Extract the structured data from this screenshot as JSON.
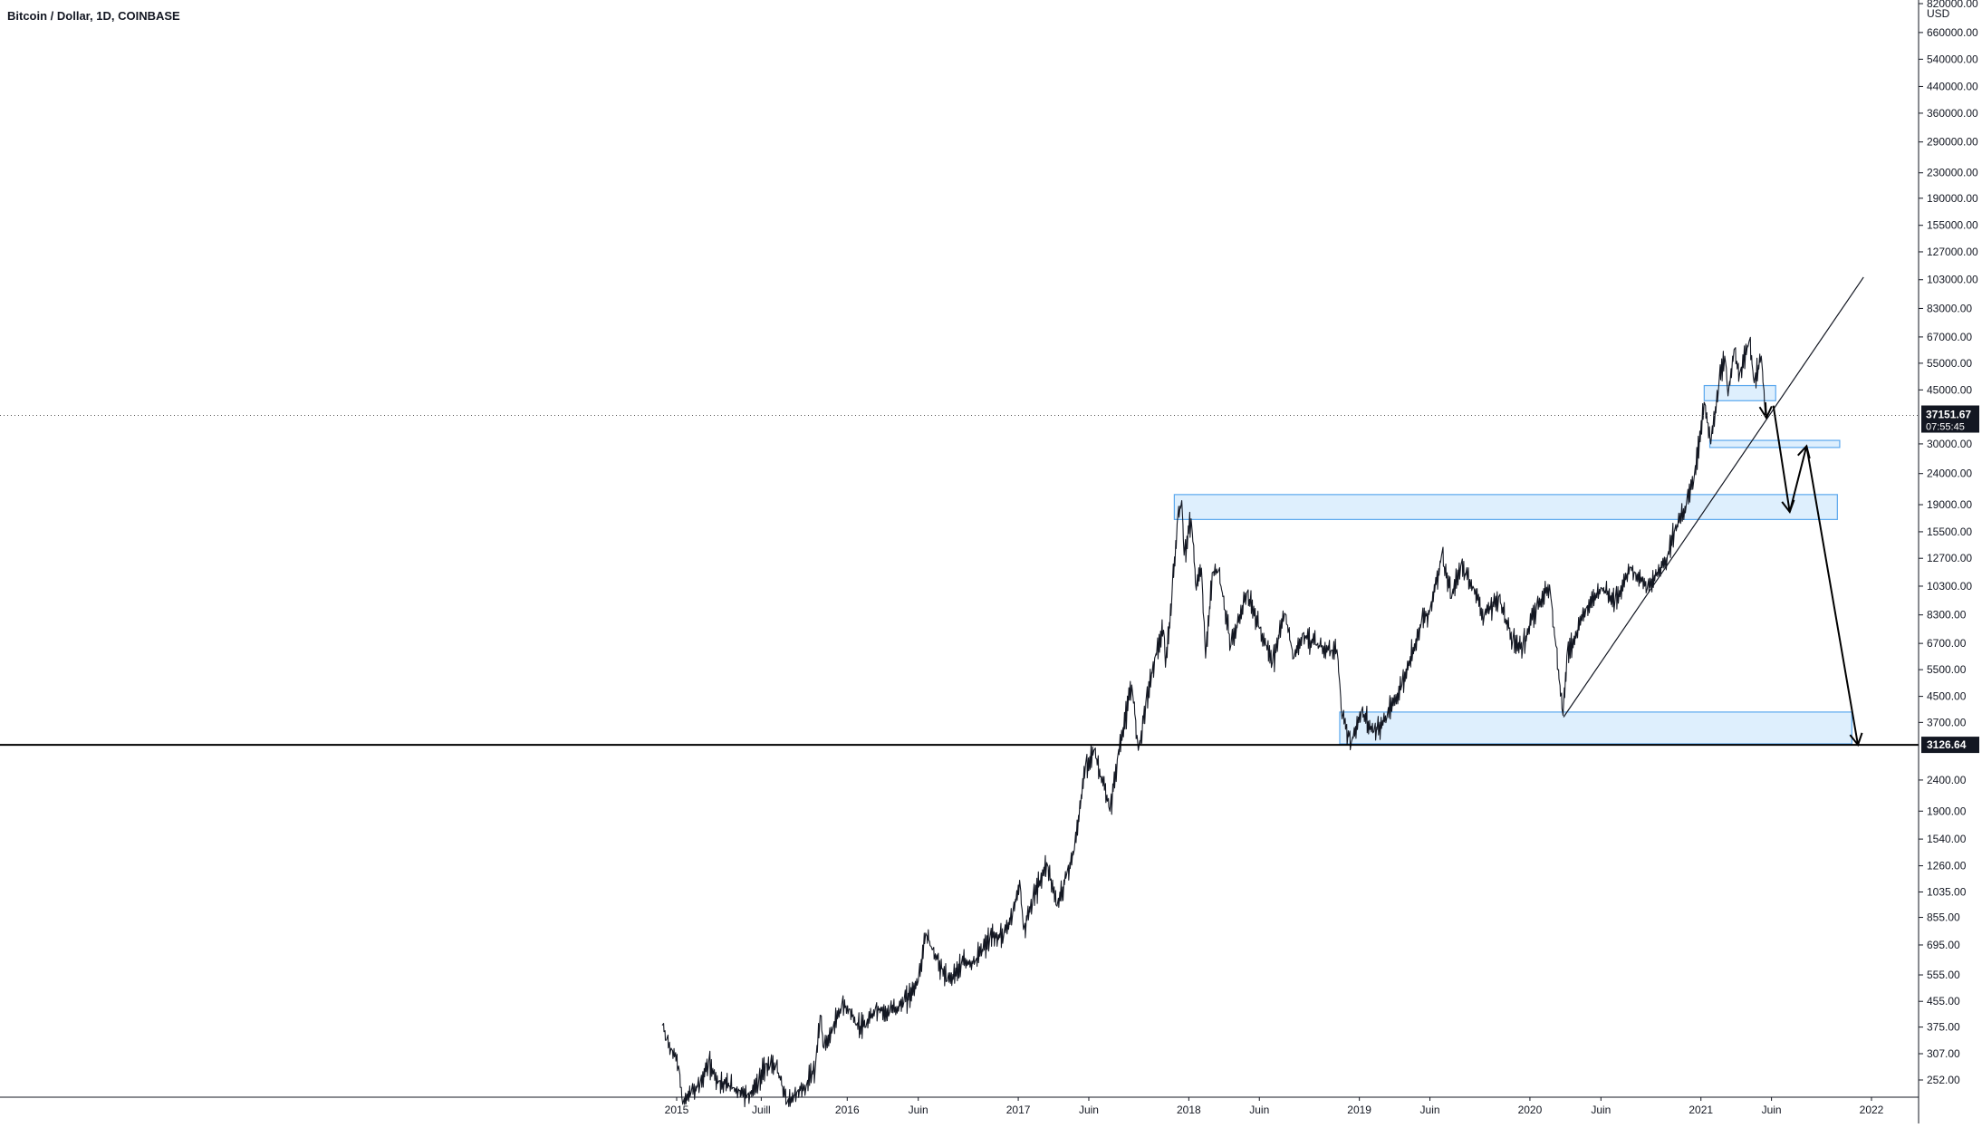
{
  "header": {
    "title": "Bitcoin / Dollar, 1D, COINBASE"
  },
  "chart_data": {
    "type": "line",
    "title": "Bitcoin / Dollar, 1D, COINBASE",
    "scale": "log",
    "currency_unit": "USD",
    "y_ticks": [
      "820000.00",
      "660000.00",
      "540000.00",
      "440000.00",
      "360000.00",
      "290000.00",
      "230000.00",
      "190000.00",
      "155000.00",
      "127000.00",
      "103000.00",
      "83000.00",
      "67000.00",
      "55000.00",
      "45000.00",
      "30000.00",
      "24000.00",
      "19000.00",
      "15500.00",
      "12700.00",
      "10300.00",
      "8300.00",
      "6700.00",
      "5500.00",
      "4500.00",
      "3700.00",
      "2400.00",
      "1900.00",
      "1540.00",
      "1260.00",
      "1035.00",
      "855.00",
      "695.00",
      "555.00",
      "455.00",
      "375.00",
      "307.00",
      "252.00"
    ],
    "y_tick_values": [
      820000,
      660000,
      540000,
      440000,
      360000,
      290000,
      230000,
      190000,
      155000,
      127000,
      103000,
      83000,
      67000,
      55000,
      45000,
      30000,
      24000,
      19000,
      15500,
      12700,
      10300,
      8300,
      6700,
      5500,
      4500,
      3700,
      2400,
      1900,
      1540,
      1260,
      1035,
      855,
      695,
      555,
      455,
      375,
      307,
      252
    ],
    "x_ticks": [
      {
        "label": "2015",
        "date": "2015-01-01"
      },
      {
        "label": "Juill",
        "date": "2015-07-01"
      },
      {
        "label": "2016",
        "date": "2016-01-01"
      },
      {
        "label": "Juin",
        "date": "2016-06-01"
      },
      {
        "label": "2017",
        "date": "2017-01-01"
      },
      {
        "label": "Juin",
        "date": "2017-06-01"
      },
      {
        "label": "2018",
        "date": "2018-01-01"
      },
      {
        "label": "Juin",
        "date": "2018-06-01"
      },
      {
        "label": "2019",
        "date": "2019-01-01"
      },
      {
        "label": "Juin",
        "date": "2019-06-01"
      },
      {
        "label": "2020",
        "date": "2020-01-01"
      },
      {
        "label": "Juin",
        "date": "2020-06-01"
      },
      {
        "label": "2021",
        "date": "2021-01-01"
      },
      {
        "label": "Juin",
        "date": "2021-06-01"
      },
      {
        "label": "2022",
        "date": "2022-01-01"
      }
    ],
    "price_series": [
      [
        "2014-12-01",
        380
      ],
      [
        "2014-12-10",
        340
      ],
      [
        "2014-12-20",
        320
      ],
      [
        "2015-01-05",
        280
      ],
      [
        "2015-01-14",
        210
      ],
      [
        "2015-02-01",
        230
      ],
      [
        "2015-02-20",
        245
      ],
      [
        "2015-03-10",
        285
      ],
      [
        "2015-04-01",
        250
      ],
      [
        "2015-05-01",
        238
      ],
      [
        "2015-06-01",
        225
      ],
      [
        "2015-06-25",
        245
      ],
      [
        "2015-07-10",
        285
      ],
      [
        "2015-07-20",
        280
      ],
      [
        "2015-08-01",
        280
      ],
      [
        "2015-08-25",
        212
      ],
      [
        "2015-09-15",
        230
      ],
      [
        "2015-10-05",
        240
      ],
      [
        "2015-10-25",
        280
      ],
      [
        "2015-11-04",
        410
      ],
      [
        "2015-11-12",
        320
      ],
      [
        "2015-12-01",
        370
      ],
      [
        "2015-12-20",
        440
      ],
      [
        "2016-01-05",
        430
      ],
      [
        "2016-01-20",
        380
      ],
      [
        "2016-02-10",
        375
      ],
      [
        "2016-03-01",
        430
      ],
      [
        "2016-04-01",
        420
      ],
      [
        "2016-05-01",
        450
      ],
      [
        "2016-06-01",
        530
      ],
      [
        "2016-06-17",
        760
      ],
      [
        "2016-07-01",
        670
      ],
      [
        "2016-08-02",
        530
      ],
      [
        "2016-09-01",
        600
      ],
      [
        "2016-10-01",
        615
      ],
      [
        "2016-11-01",
        730
      ],
      [
        "2016-12-01",
        750
      ],
      [
        "2016-12-20",
        880
      ],
      [
        "2017-01-04",
        1130
      ],
      [
        "2017-01-12",
        780
      ],
      [
        "2017-02-01",
        980
      ],
      [
        "2017-03-03",
        1290
      ],
      [
        "2017-03-25",
        930
      ],
      [
        "2017-04-15",
        1190
      ],
      [
        "2017-05-01",
        1420
      ],
      [
        "2017-05-25",
        2700
      ],
      [
        "2017-06-12",
        3000
      ],
      [
        "2017-07-16",
        1900
      ],
      [
        "2017-08-01",
        2800
      ],
      [
        "2017-09-01",
        4900
      ],
      [
        "2017-09-15",
        3000
      ],
      [
        "2017-10-01",
        4300
      ],
      [
        "2017-10-20",
        6000
      ],
      [
        "2017-11-08",
        7400
      ],
      [
        "2017-11-12",
        5600
      ],
      [
        "2017-11-26",
        9700
      ],
      [
        "2017-12-07",
        16500
      ],
      [
        "2017-12-17",
        19600
      ],
      [
        "2017-12-22",
        13000
      ],
      [
        "2018-01-06",
        17100
      ],
      [
        "2018-01-17",
        10000
      ],
      [
        "2018-01-28",
        11800
      ],
      [
        "2018-02-06",
        6000
      ],
      [
        "2018-02-20",
        11400
      ],
      [
        "2018-03-05",
        11500
      ],
      [
        "2018-04-01",
        6600
      ],
      [
        "2018-05-05",
        9800
      ],
      [
        "2018-06-01",
        7500
      ],
      [
        "2018-06-29",
        5800
      ],
      [
        "2018-07-25",
        8400
      ],
      [
        "2018-08-14",
        6000
      ],
      [
        "2018-09-01",
        7200
      ],
      [
        "2018-10-01",
        6600
      ],
      [
        "2018-11-01",
        6350
      ],
      [
        "2018-11-14",
        6400
      ],
      [
        "2018-11-25",
        3800
      ],
      [
        "2018-12-15",
        3200
      ],
      [
        "2019-01-05",
        4000
      ],
      [
        "2019-02-01",
        3450
      ],
      [
        "2019-03-01",
        3850
      ],
      [
        "2019-04-02",
        4900
      ],
      [
        "2019-05-14",
        7900
      ],
      [
        "2019-06-01",
        8600
      ],
      [
        "2019-06-26",
        13000
      ],
      [
        "2019-07-17",
        9400
      ],
      [
        "2019-08-06",
        12000
      ],
      [
        "2019-09-01",
        10300
      ],
      [
        "2019-09-25",
        8200
      ],
      [
        "2019-10-26",
        9500
      ],
      [
        "2019-11-25",
        6800
      ],
      [
        "2019-12-17",
        6600
      ],
      [
        "2020-01-15",
        8800
      ],
      [
        "2020-02-12",
        10400
      ],
      [
        "2020-03-12",
        3900
      ],
      [
        "2020-03-20",
        6100
      ],
      [
        "2020-04-30",
        8700
      ],
      [
        "2020-06-01",
        10200
      ],
      [
        "2020-07-01",
        9200
      ],
      [
        "2020-08-02",
        11900
      ],
      [
        "2020-09-08",
        10100
      ],
      [
        "2020-10-21",
        12900
      ],
      [
        "2020-11-05",
        15500
      ],
      [
        "2020-12-01",
        19200
      ],
      [
        "2020-12-17",
        23000
      ],
      [
        "2021-01-08",
        41000
      ],
      [
        "2021-01-22",
        30000
      ],
      [
        "2021-02-08",
        46000
      ],
      [
        "2021-02-21",
        58000
      ],
      [
        "2021-02-28",
        43000
      ],
      [
        "2021-03-13",
        61000
      ],
      [
        "2021-03-25",
        51000
      ],
      [
        "2021-04-14",
        64800
      ],
      [
        "2021-04-25",
        47500
      ],
      [
        "2021-05-10",
        58000
      ],
      [
        "2021-05-19",
        37000
      ]
    ],
    "horizontal_line": {
      "value": 3126.64,
      "label": "3126.64"
    },
    "current_price": {
      "value": 37151.67,
      "label": "37151.67",
      "countdown": "07:55:45"
    },
    "zones": [
      {
        "from": "2021-01-08",
        "to": "2021-06-10",
        "low": 41500,
        "high": 46500
      },
      {
        "from": "2021-01-20",
        "to": "2021-10-25",
        "low": 29200,
        "high": 30800
      },
      {
        "from": "2017-12-01",
        "to": "2021-10-20",
        "low": 17000,
        "high": 20500
      },
      {
        "from": "2018-11-20",
        "to": "2021-11-20",
        "low": 3150,
        "high": 4000
      }
    ],
    "trendline": {
      "from": [
        "2020-03-13",
        3850
      ],
      "to": [
        "2021-12-15",
        105000
      ]
    },
    "projection_arrows": [
      [
        [
          "2021-05-19",
          41000
        ],
        [
          "2021-05-21",
          36500
        ]
      ],
      [
        [
          "2021-06-05",
          40000
        ],
        [
          "2021-07-10",
          18000
        ]
      ],
      [
        [
          "2021-07-10",
          18000
        ],
        [
          "2021-08-15",
          29500
        ]
      ],
      [
        [
          "2021-08-15",
          29500
        ],
        [
          "2021-12-03",
          3126
        ]
      ]
    ],
    "grid": false,
    "legend": "none"
  }
}
